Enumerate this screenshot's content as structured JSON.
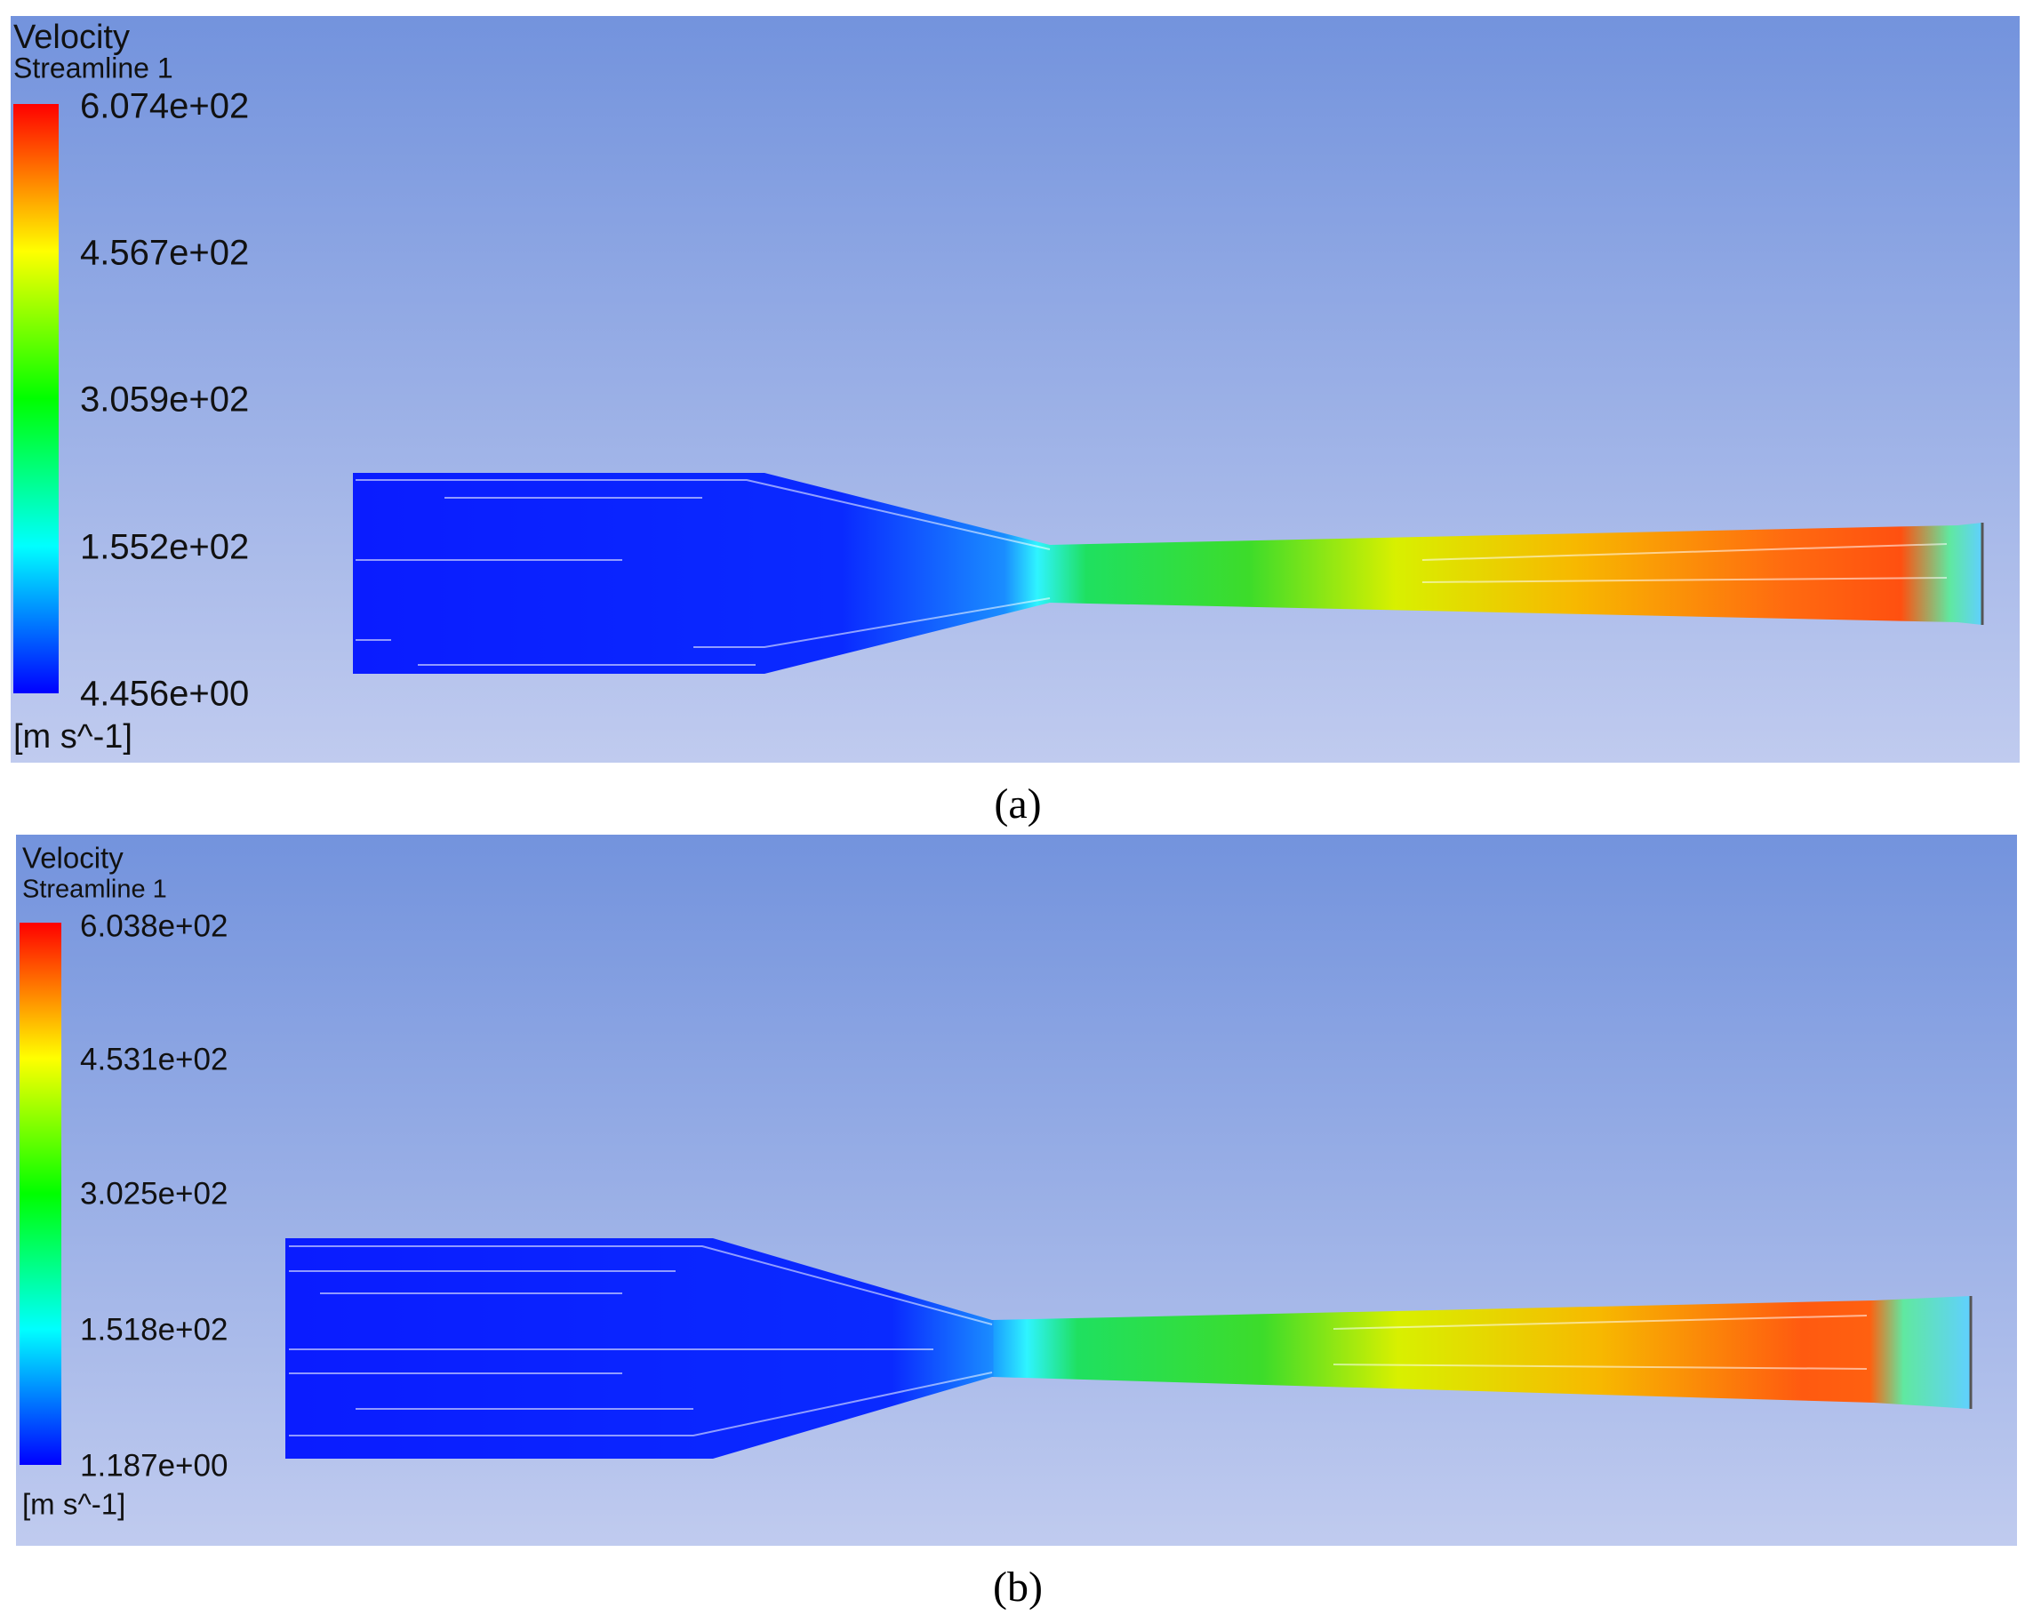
{
  "panels": [
    {
      "title": "Velocity",
      "variable": "Streamline 1",
      "colorbar_labels": [
        "6.074e+02",
        "4.567e+02",
        "3.059e+02",
        "1.552e+02",
        "4.456e+00"
      ],
      "unit": "[m s^-1]",
      "caption": "(a)"
    },
    {
      "title": "Velocity",
      "variable": "Streamline 1",
      "colorbar_labels": [
        "6.038e+02",
        "4.531e+02",
        "3.025e+02",
        "1.518e+02",
        "1.187e+00"
      ],
      "unit": "[m s^-1]",
      "caption": "(b)"
    }
  ]
}
